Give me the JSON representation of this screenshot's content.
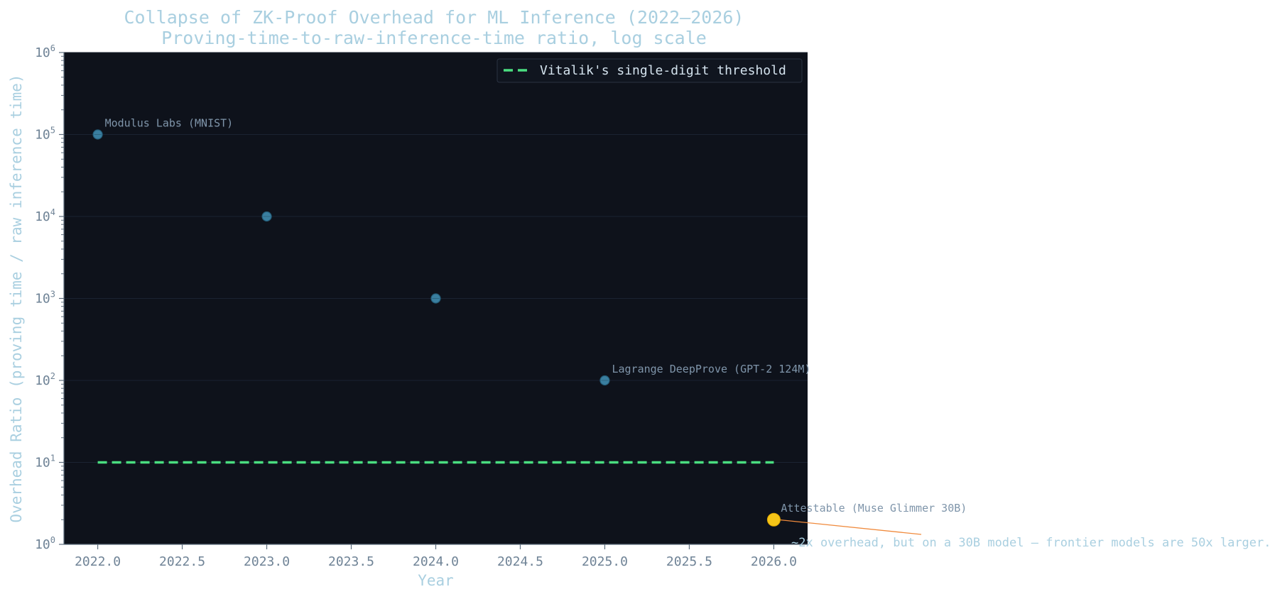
{
  "chart_data": {
    "type": "scatter",
    "title": "Collapse of ZK-Proof Overhead for ML Inference (2022–2026)",
    "subtitle": "Proving-time-to-raw-inference-time ratio, log scale",
    "xlabel": "Year",
    "ylabel": "Overhead Ratio (proving time / raw inference time)",
    "yscale": "log",
    "xlim": [
      2021.8,
      2026.2
    ],
    "ylim": [
      1,
      1000000
    ],
    "x_ticks": [
      "2022.0",
      "2022.5",
      "2023.0",
      "2023.5",
      "2024.0",
      "2024.5",
      "2025.0",
      "2025.5",
      "2026.0"
    ],
    "y_ticks": [
      {
        "base": "10",
        "exp": "0"
      },
      {
        "base": "10",
        "exp": "1"
      },
      {
        "base": "10",
        "exp": "2"
      },
      {
        "base": "10",
        "exp": "3"
      },
      {
        "base": "10",
        "exp": "4"
      },
      {
        "base": "10",
        "exp": "5"
      },
      {
        "base": "10",
        "exp": "6"
      }
    ],
    "points": [
      {
        "x": 2022,
        "y": 100000,
        "label": "Modulus Labs (MNIST)",
        "highlight": false
      },
      {
        "x": 2023,
        "y": 10000,
        "label": "",
        "highlight": false
      },
      {
        "x": 2024,
        "y": 1000,
        "label": "",
        "highlight": false
      },
      {
        "x": 2025,
        "y": 100,
        "label": "Lagrange DeepProve (GPT-2 124M)",
        "highlight": false
      },
      {
        "x": 2026,
        "y": 2,
        "label": "Attestable (Muse Glimmer 30B)",
        "highlight": true
      }
    ],
    "threshold": {
      "label": "Vitalik's single-digit threshold",
      "y": 10,
      "x_start": 2022,
      "x_end": 2026
    },
    "annotation": {
      "text": "~2x overhead, but on a 30B model — frontier models are 50x larger.",
      "x": 2026,
      "y": 2
    },
    "legend_position": "top-right",
    "grid": true,
    "colors": {
      "plot_background": "#0e121b",
      "point": "#3a7fa0",
      "highlight_point": "#f5c518",
      "threshold_line": "#4ade80",
      "annotation_arrow": "#f08a3c"
    }
  }
}
